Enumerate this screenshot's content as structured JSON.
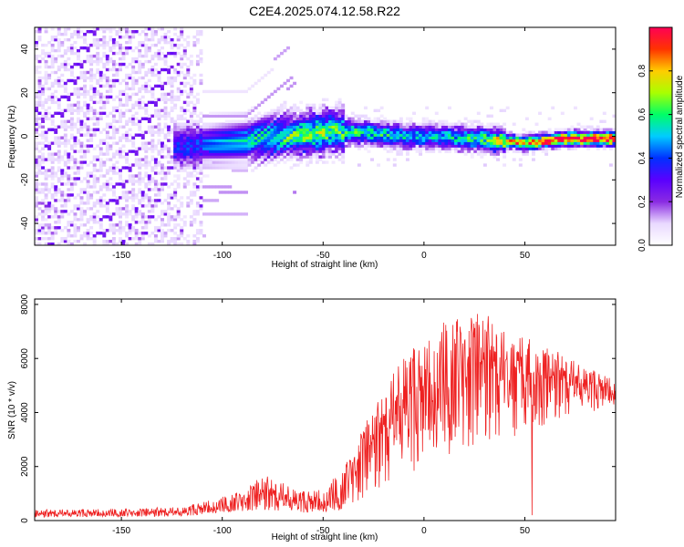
{
  "title": "C2E4.2025.074.12.58.R22",
  "chart_data": [
    {
      "type": "heatmap",
      "xlabel": "Height of straight line (km)",
      "ylabel": "Frequency (Hz)",
      "xlim": [
        -193,
        95
      ],
      "ylim": [
        -50,
        50
      ],
      "xticks": [
        -150,
        -100,
        -50,
        0,
        50
      ],
      "xtick_labels": [
        "-150",
        "-100",
        "-50",
        "0",
        "50"
      ],
      "yticks": [
        -40,
        -20,
        0,
        20,
        40
      ],
      "ytick_labels": [
        "-40",
        "-20",
        "0",
        "20",
        "40"
      ],
      "colorbar": {
        "label": "Normalized spectral amplitude",
        "range": [
          0,
          1
        ],
        "ticks": [
          0.0,
          0.2,
          0.4,
          0.6,
          0.8
        ],
        "tick_labels": [
          "0.0",
          "0.2",
          "0.4",
          "0.6",
          "0.8"
        ],
        "colormap": [
          "#ffffff",
          "#e9d9ff",
          "#8a2be2",
          "#5a00ff",
          "#0030ff",
          "#00ccff",
          "#00ff66",
          "#aaff00",
          "#ffcc00",
          "#ff3300",
          "#ff0055"
        ]
      },
      "ridge": {
        "x": [
          -125,
          -110,
          -100,
          -90,
          -80,
          -70,
          -60,
          -50,
          -45,
          -40,
          -30,
          -20,
          -10,
          0,
          10,
          20,
          30,
          35,
          40,
          50,
          60,
          70,
          80,
          90,
          95
        ],
        "freq": [
          -5,
          -4,
          -3,
          -2,
          -1,
          0,
          1,
          2,
          3,
          2,
          2,
          1,
          0,
          0,
          0,
          -1,
          -1,
          -2,
          -2,
          -3,
          -2,
          -1,
          -1,
          -1,
          -1
        ],
        "amplitude": [
          0.35,
          0.4,
          0.45,
          0.5,
          0.55,
          0.6,
          0.62,
          0.65,
          0.6,
          0.6,
          0.55,
          0.55,
          0.5,
          0.5,
          0.5,
          0.55,
          0.6,
          0.7,
          0.75,
          0.85,
          0.95,
          1.0,
          1.0,
          1.0,
          1.0
        ]
      }
    },
    {
      "type": "line",
      "xlabel": "Height of straight line (km)",
      "ylabel": "SNR (10 * v/v)",
      "xlim": [
        -193,
        95
      ],
      "ylim": [
        0,
        8200
      ],
      "xticks": [
        -150,
        -100,
        -50,
        0,
        50
      ],
      "xtick_labels": [
        "-150",
        "-100",
        "-50",
        "0",
        "50"
      ],
      "yticks": [
        0,
        2000,
        4000,
        6000,
        8000
      ],
      "ytick_labels": [
        "0",
        "2000",
        "4000",
        "6000",
        "8000"
      ],
      "line_color": "#ee2222",
      "envelope": {
        "x": [
          -193,
          -150,
          -120,
          -100,
          -90,
          -80,
          -70,
          -60,
          -50,
          -40,
          -30,
          -20,
          -10,
          0,
          10,
          20,
          30,
          40,
          50,
          60,
          70,
          80,
          90,
          95
        ],
        "low": [
          120,
          150,
          150,
          300,
          350,
          400,
          350,
          300,
          300,
          400,
          800,
          1200,
          1600,
          2000,
          2400,
          2600,
          2800,
          3000,
          3200,
          3500,
          3800,
          4000,
          4100,
          4200
        ],
        "high": [
          400,
          450,
          500,
          900,
          1200,
          1700,
          1400,
          1100,
          1200,
          2000,
          3600,
          4700,
          6300,
          6600,
          7500,
          8000,
          7700,
          7000,
          6900,
          6500,
          6100,
          5700,
          5400,
          5200
        ]
      }
    }
  ]
}
